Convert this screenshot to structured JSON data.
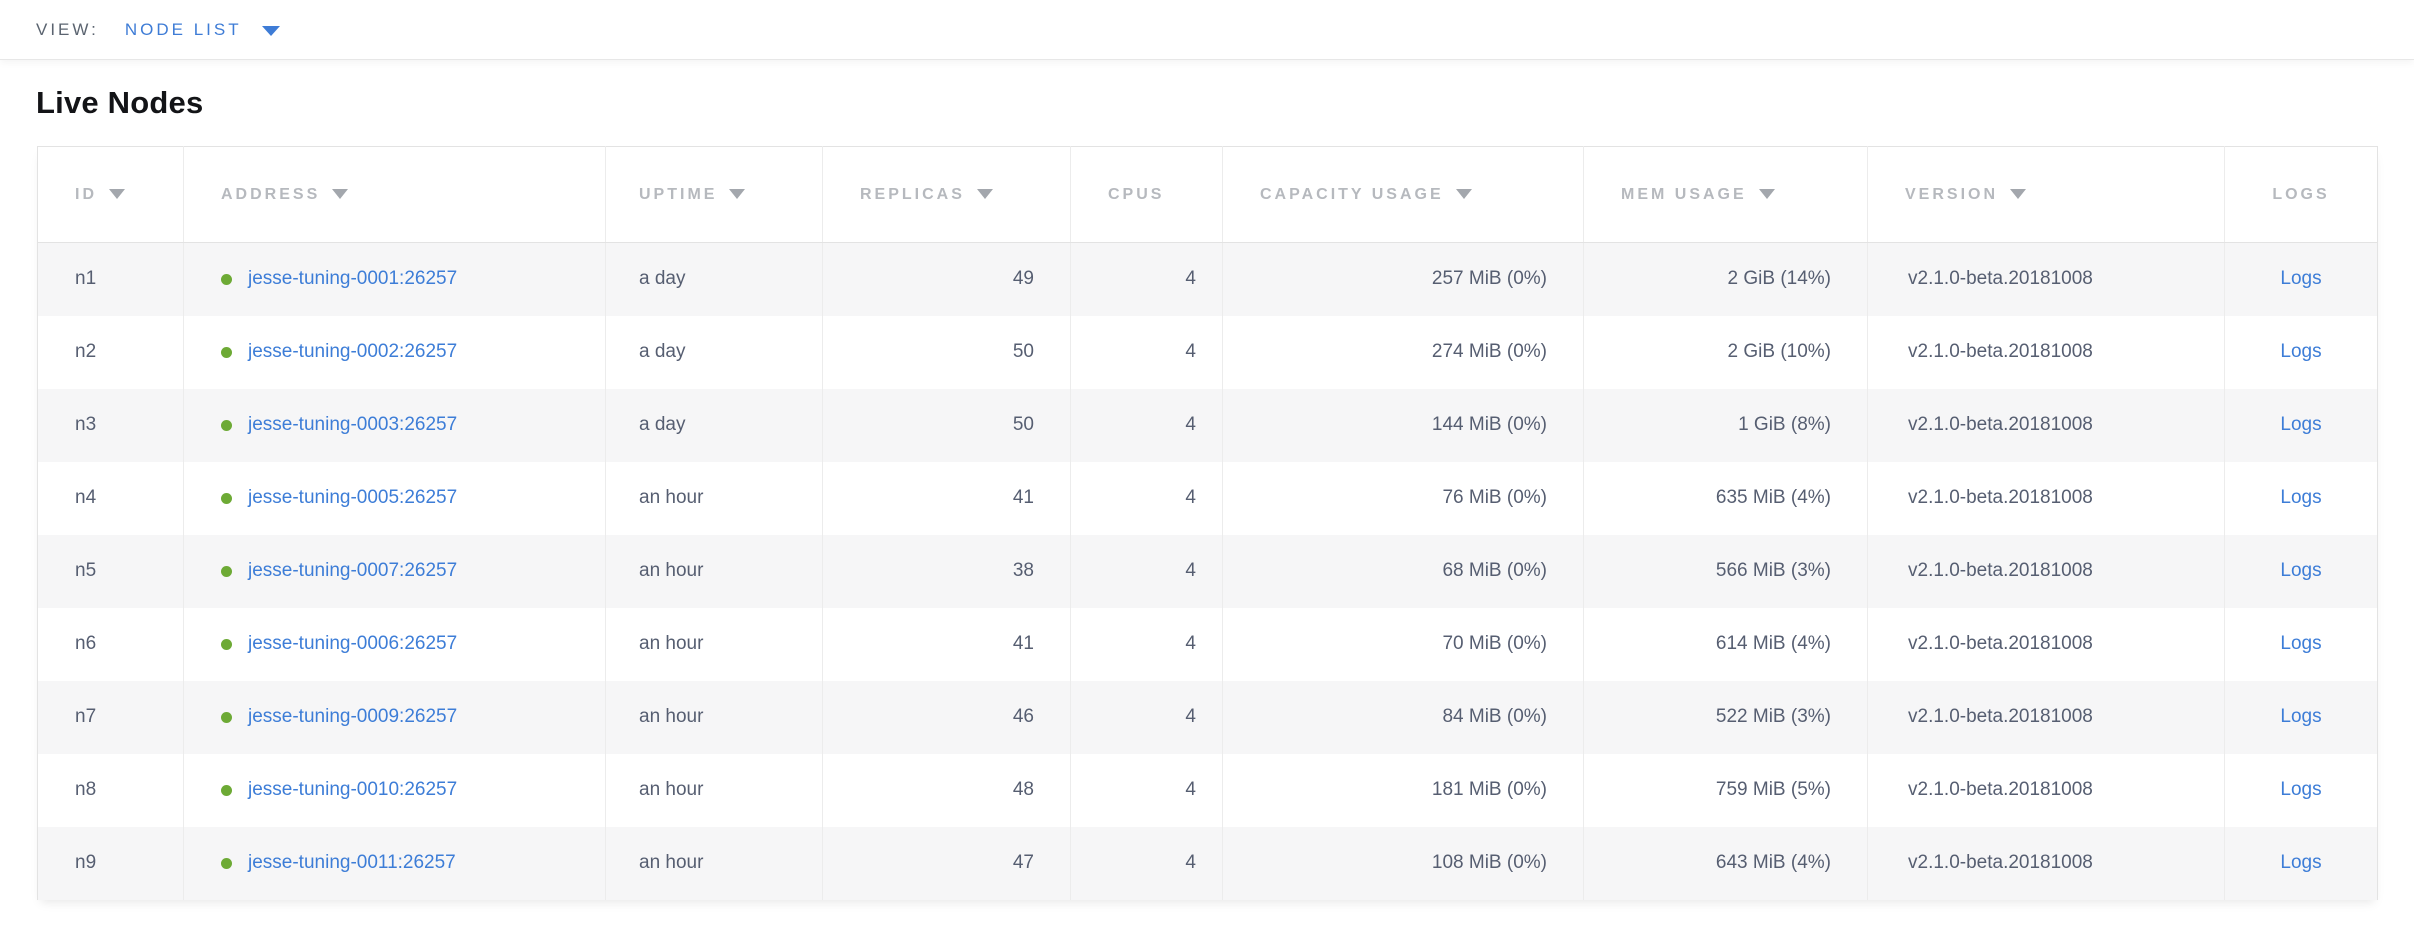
{
  "view_bar": {
    "label": "VIEW:",
    "selected": "NODE LIST"
  },
  "page": {
    "title": "Live Nodes"
  },
  "table": {
    "columns": [
      {
        "key": "id",
        "label": "ID",
        "sortable": true
      },
      {
        "key": "address",
        "label": "ADDRESS",
        "sortable": true
      },
      {
        "key": "uptime",
        "label": "UPTIME",
        "sortable": true
      },
      {
        "key": "replicas",
        "label": "REPLICAS",
        "sortable": true
      },
      {
        "key": "cpus",
        "label": "CPUS",
        "sortable": false
      },
      {
        "key": "capacity",
        "label": "CAPACITY USAGE",
        "sortable": true
      },
      {
        "key": "mem",
        "label": "MEM USAGE",
        "sortable": true
      },
      {
        "key": "version",
        "label": "VERSION",
        "sortable": true
      },
      {
        "key": "logs",
        "label": "LOGS",
        "sortable": false
      }
    ],
    "rows": [
      {
        "id": "n1",
        "status": "live",
        "address": "jesse-tuning-0001:26257",
        "uptime": "a day",
        "replicas": "49",
        "cpus": "4",
        "capacity": "257 MiB (0%)",
        "mem": "2 GiB (14%)",
        "version": "v2.1.0-beta.20181008",
        "logs": "Logs"
      },
      {
        "id": "n2",
        "status": "live",
        "address": "jesse-tuning-0002:26257",
        "uptime": "a day",
        "replicas": "50",
        "cpus": "4",
        "capacity": "274 MiB (0%)",
        "mem": "2 GiB (10%)",
        "version": "v2.1.0-beta.20181008",
        "logs": "Logs"
      },
      {
        "id": "n3",
        "status": "live",
        "address": "jesse-tuning-0003:26257",
        "uptime": "a day",
        "replicas": "50",
        "cpus": "4",
        "capacity": "144 MiB (0%)",
        "mem": "1 GiB (8%)",
        "version": "v2.1.0-beta.20181008",
        "logs": "Logs"
      },
      {
        "id": "n4",
        "status": "live",
        "address": "jesse-tuning-0005:26257",
        "uptime": "an hour",
        "replicas": "41",
        "cpus": "4",
        "capacity": "76 MiB (0%)",
        "mem": "635 MiB (4%)",
        "version": "v2.1.0-beta.20181008",
        "logs": "Logs"
      },
      {
        "id": "n5",
        "status": "live",
        "address": "jesse-tuning-0007:26257",
        "uptime": "an hour",
        "replicas": "38",
        "cpus": "4",
        "capacity": "68 MiB (0%)",
        "mem": "566 MiB (3%)",
        "version": "v2.1.0-beta.20181008",
        "logs": "Logs"
      },
      {
        "id": "n6",
        "status": "live",
        "address": "jesse-tuning-0006:26257",
        "uptime": "an hour",
        "replicas": "41",
        "cpus": "4",
        "capacity": "70 MiB (0%)",
        "mem": "614 MiB (4%)",
        "version": "v2.1.0-beta.20181008",
        "logs": "Logs"
      },
      {
        "id": "n7",
        "status": "live",
        "address": "jesse-tuning-0009:26257",
        "uptime": "an hour",
        "replicas": "46",
        "cpus": "4",
        "capacity": "84 MiB (0%)",
        "mem": "522 MiB (3%)",
        "version": "v2.1.0-beta.20181008",
        "logs": "Logs"
      },
      {
        "id": "n8",
        "status": "live",
        "address": "jesse-tuning-0010:26257",
        "uptime": "an hour",
        "replicas": "48",
        "cpus": "4",
        "capacity": "181 MiB (0%)",
        "mem": "759 MiB (5%)",
        "version": "v2.1.0-beta.20181008",
        "logs": "Logs"
      },
      {
        "id": "n9",
        "status": "live",
        "address": "jesse-tuning-0011:26257",
        "uptime": "an hour",
        "replicas": "47",
        "cpus": "4",
        "capacity": "108 MiB (0%)",
        "mem": "643 MiB (4%)",
        "version": "v2.1.0-beta.20181008",
        "logs": "Logs"
      }
    ]
  },
  "colors": {
    "accent_blue": "#3d7dd7",
    "node_live_green": "#6daa35",
    "header_gray": "#b6b9be",
    "text_slate": "#565e71",
    "stripe_gray": "#f6f6f7"
  }
}
